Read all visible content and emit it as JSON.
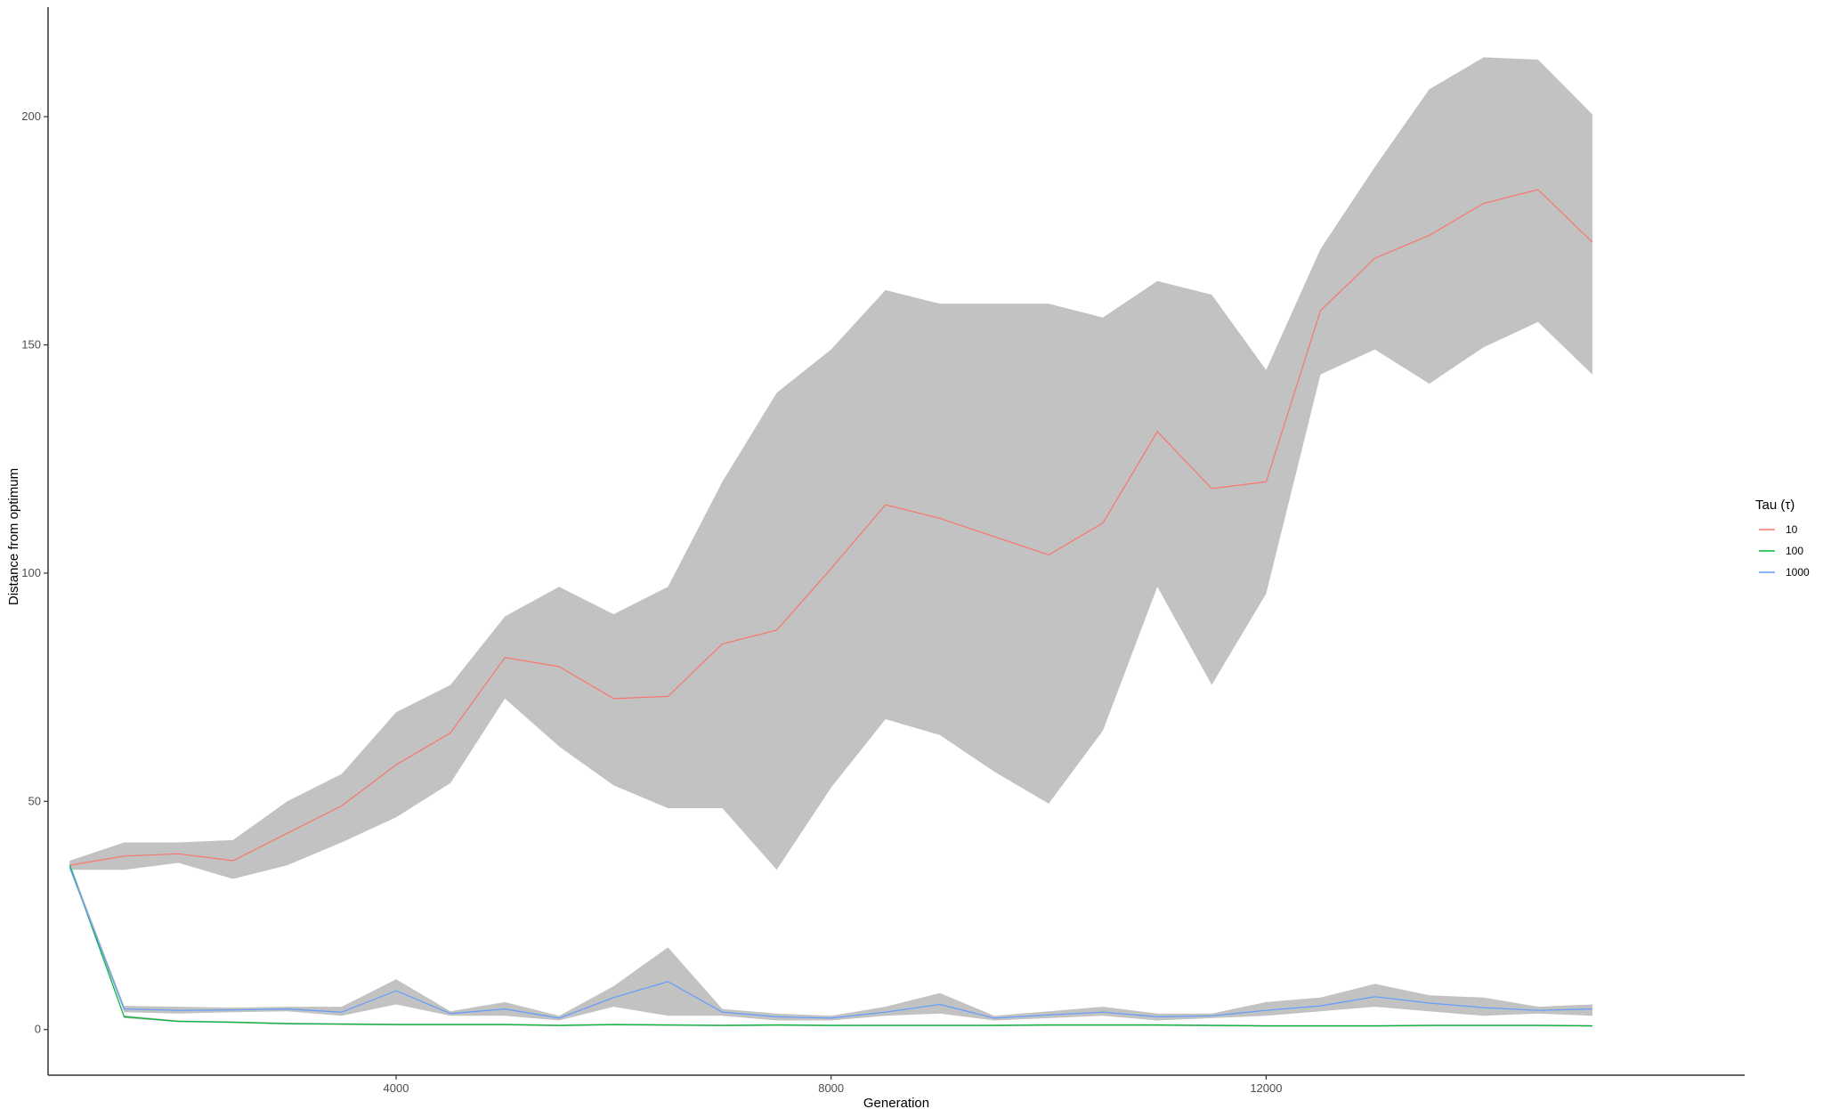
{
  "chart_data": {
    "type": "line",
    "title": "",
    "xlabel": "Generation",
    "ylabel": "Distance from optimum",
    "xlim": [
      800,
      16400
    ],
    "ylim": [
      -10,
      224
    ],
    "x_ticks": [
      4000,
      8000,
      12000
    ],
    "x_tick_labels": [
      "4000",
      "8000",
      "12000"
    ],
    "y_ticks": [
      0,
      50,
      100,
      150,
      200
    ],
    "y_tick_labels": [
      "0",
      "50",
      "100",
      "150",
      "200"
    ],
    "grid": false,
    "legend": {
      "title": "Tau (τ)",
      "position": "right"
    },
    "ribbon_color": "#c2c2c2",
    "x": [
      1000,
      1500,
      2000,
      2500,
      3000,
      3500,
      4000,
      4500,
      5000,
      5500,
      6000,
      6500,
      7000,
      7500,
      8000,
      8500,
      9000,
      9500,
      10000,
      10500,
      11000,
      11500,
      12000,
      12500,
      13000,
      13500,
      14000,
      14500,
      15000
    ],
    "series": [
      {
        "name": "10",
        "color": "#F8766D",
        "values": [
          36,
          38,
          38.5,
          37,
          43,
          49,
          58,
          65,
          81.5,
          79.5,
          72.5,
          73,
          84.5,
          87.5,
          101,
          115,
          112,
          108,
          104,
          111,
          131,
          118.5,
          120,
          157.5,
          169,
          174,
          181,
          184,
          172.5
        ],
        "lower": [
          35,
          35,
          36.5,
          33,
          36,
          41,
          46.5,
          54,
          72.5,
          62,
          53.5,
          48.5,
          48.5,
          35,
          53,
          68,
          64.5,
          56.5,
          49.5,
          65.5,
          97,
          75.5,
          95.5,
          143.5,
          149,
          141.5,
          149.5,
          155,
          143.5
        ],
        "upper": [
          37,
          41,
          41,
          41.5,
          50,
          56,
          69.5,
          75.5,
          90.5,
          97,
          91,
          97,
          120,
          139.5,
          149,
          162,
          159,
          159,
          159,
          156,
          164,
          161,
          144.5,
          171,
          189,
          206,
          213,
          212.5,
          200.5
        ]
      },
      {
        "name": "100",
        "color": "#00BA38",
        "values": [
          36,
          2.8,
          1.8,
          1.6,
          1.3,
          1.2,
          1.1,
          1.1,
          1.1,
          0.9,
          1.1,
          1.0,
          0.9,
          1.0,
          0.9,
          0.9,
          0.9,
          0.9,
          1.0,
          1.0,
          1.0,
          0.9,
          0.8,
          0.8,
          0.8,
          0.9,
          0.9,
          0.9,
          0.8
        ],
        "lower": [
          35.5,
          2.5,
          1.6,
          1.4,
          1.1,
          1.0,
          0.9,
          0.9,
          0.9,
          0.7,
          0.9,
          0.8,
          0.7,
          0.8,
          0.7,
          0.7,
          0.7,
          0.7,
          0.8,
          0.8,
          0.8,
          0.7,
          0.6,
          0.6,
          0.6,
          0.7,
          0.7,
          0.7,
          0.6
        ],
        "upper": [
          36.5,
          3.1,
          2.0,
          1.8,
          1.5,
          1.4,
          1.3,
          1.3,
          1.3,
          1.1,
          1.3,
          1.2,
          1.1,
          1.2,
          1.1,
          1.1,
          1.1,
          1.1,
          1.2,
          1.2,
          1.2,
          1.1,
          1.0,
          1.0,
          1.0,
          1.1,
          1.1,
          1.1,
          1.0
        ]
      },
      {
        "name": "1000",
        "color": "#619CFF",
        "values": [
          35.5,
          4.5,
          4.2,
          4.3,
          4.5,
          3.8,
          8.5,
          3.5,
          4.5,
          2.5,
          7.0,
          10.5,
          3.8,
          2.8,
          2.5,
          3.8,
          5.5,
          2.5,
          3.2,
          3.8,
          2.8,
          3.0,
          4.2,
          5.2,
          7.2,
          5.8,
          4.8,
          4.2,
          4.5
        ],
        "lower": [
          35,
          3.8,
          3.5,
          3.8,
          4.0,
          3.0,
          5.5,
          3.0,
          3.0,
          2.0,
          5.0,
          3.0,
          3.0,
          2.0,
          2.0,
          3.0,
          3.5,
          2.0,
          2.5,
          3.0,
          2.0,
          2.5,
          3.0,
          4.0,
          5.0,
          4.0,
          3.0,
          3.5,
          3.0
        ],
        "upper": [
          36.5,
          5.2,
          5.0,
          4.8,
          5.0,
          5.0,
          11.0,
          4.0,
          6.0,
          3.0,
          9.5,
          18.0,
          4.5,
          3.5,
          3.0,
          5.0,
          8.0,
          3.0,
          4.0,
          5.0,
          3.5,
          3.5,
          6.0,
          7.0,
          10.0,
          7.5,
          7.0,
          5.0,
          5.5
        ]
      }
    ]
  }
}
